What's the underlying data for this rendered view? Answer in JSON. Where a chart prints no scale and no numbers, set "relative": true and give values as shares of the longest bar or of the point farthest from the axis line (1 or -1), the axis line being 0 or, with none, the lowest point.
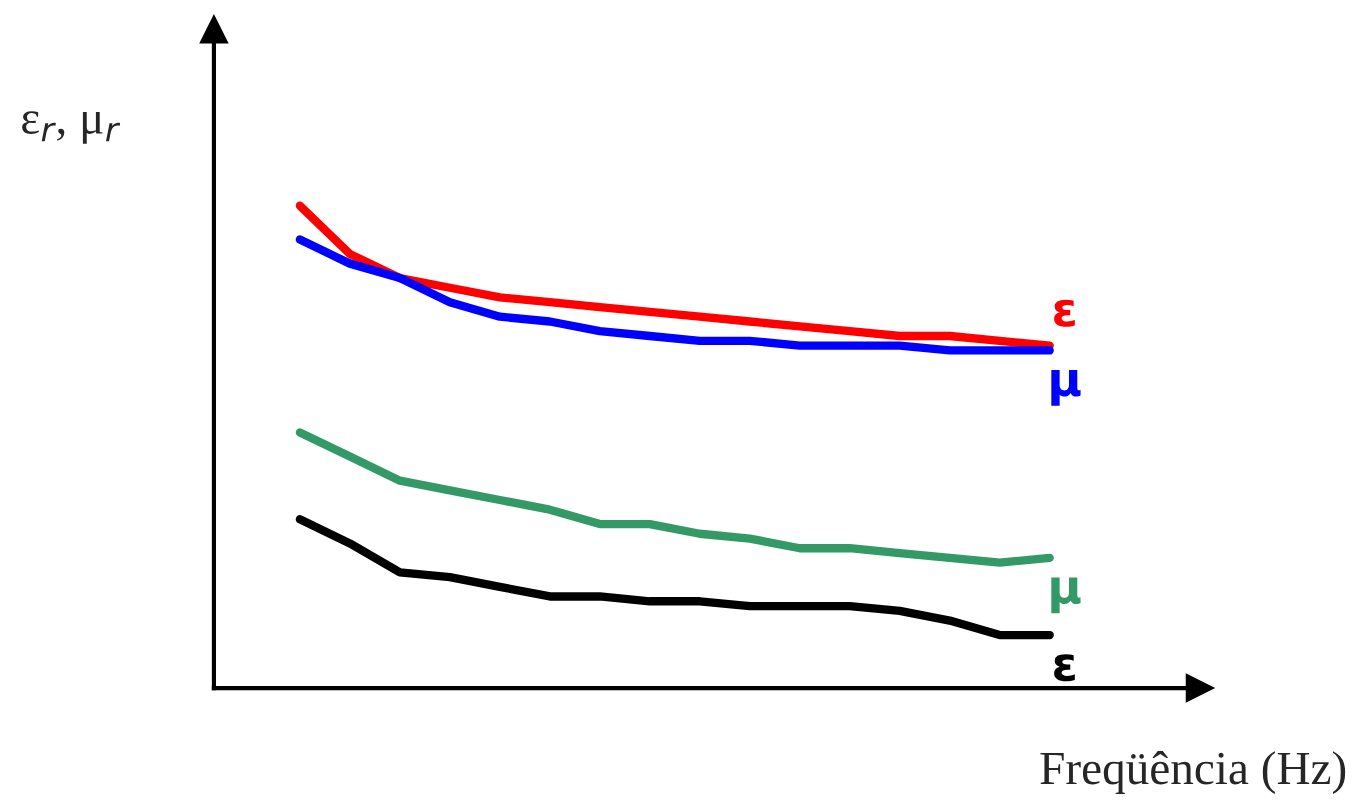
{
  "chart_data": {
    "type": "line",
    "relative": true,
    "xlabel": "Freqüência (Hz)",
    "ylabel": "ε$_{r}$, μ$_{r}$",
    "categories": [
      null,
      null,
      null,
      null,
      null,
      null,
      null,
      null,
      null,
      null,
      null,
      null,
      null,
      null,
      null,
      null
    ],
    "series": [
      {
        "name": "ε",
        "color": "#ff0000",
        "values": [
          1.0,
          0.9,
          0.85,
          0.83,
          0.81,
          0.8,
          0.79,
          0.78,
          0.77,
          0.76,
          0.75,
          0.74,
          0.73,
          0.73,
          0.72,
          0.71
        ]
      },
      {
        "name": "μ",
        "color": "#0000ff",
        "values": [
          0.93,
          0.88,
          0.85,
          0.8,
          0.77,
          0.76,
          0.74,
          0.73,
          0.72,
          0.72,
          0.71,
          0.71,
          0.71,
          0.7,
          0.7,
          0.7
        ]
      },
      {
        "name": "μ",
        "color": "#339966",
        "values": [
          0.53,
          0.48,
          0.43,
          0.41,
          0.39,
          0.37,
          0.34,
          0.34,
          0.32,
          0.31,
          0.29,
          0.29,
          0.28,
          0.27,
          0.26,
          0.27
        ]
      },
      {
        "name": "ε",
        "color": "#000000",
        "values": [
          0.35,
          0.3,
          0.24,
          0.23,
          0.21,
          0.19,
          0.19,
          0.18,
          0.18,
          0.17,
          0.17,
          0.17,
          0.16,
          0.14,
          0.11,
          0.11
        ]
      }
    ]
  }
}
